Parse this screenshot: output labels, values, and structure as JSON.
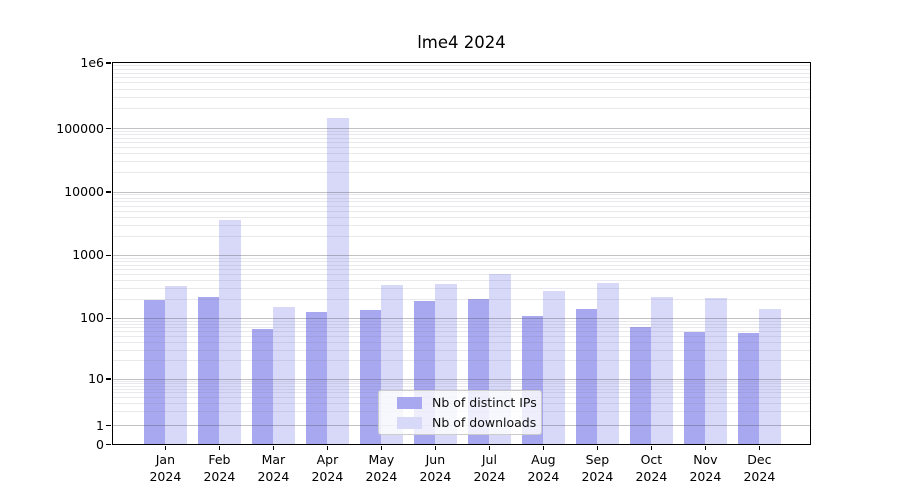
{
  "figure": {
    "title": "lme4 2024"
  },
  "chart_data": {
    "type": "bar",
    "title": "lme4 2024",
    "yscale": "symlog",
    "ylim": [
      0,
      1000000
    ],
    "grid": true,
    "legend_position": "lower center",
    "x_year_label": "2024",
    "categories": [
      "Jan",
      "Feb",
      "Mar",
      "Apr",
      "May",
      "Jun",
      "Jul",
      "Aug",
      "Sep",
      "Oct",
      "Nov",
      "Dec"
    ],
    "series": [
      {
        "name": "Nb of distinct IPs",
        "color": "#a8a8f0",
        "values": [
          195,
          220,
          66,
          127,
          135,
          188,
          205,
          110,
          142,
          72,
          60,
          57
        ]
      },
      {
        "name": "Nb of downloads",
        "color": "#d8d8f8",
        "values": [
          330,
          3600,
          150,
          145000,
          335,
          350,
          500,
          270,
          370,
          218,
          210,
          142
        ]
      }
    ],
    "y_ticks": [
      {
        "label": "1e6",
        "value": 1000000
      },
      {
        "label": "100000",
        "value": 100000
      },
      {
        "label": "10000",
        "value": 10000
      },
      {
        "label": "1000",
        "value": 1000
      },
      {
        "label": "100",
        "value": 100
      },
      {
        "label": "10",
        "value": 10
      },
      {
        "label": "1",
        "value": 1
      },
      {
        "label": "0",
        "value": 0
      }
    ]
  },
  "colors": {
    "grid_major": "rgba(80,80,90,0.35)",
    "grid_minor": "rgba(120,120,140,0.16)",
    "frame": "#000000",
    "background": "#ffffff",
    "text": "#000000"
  }
}
